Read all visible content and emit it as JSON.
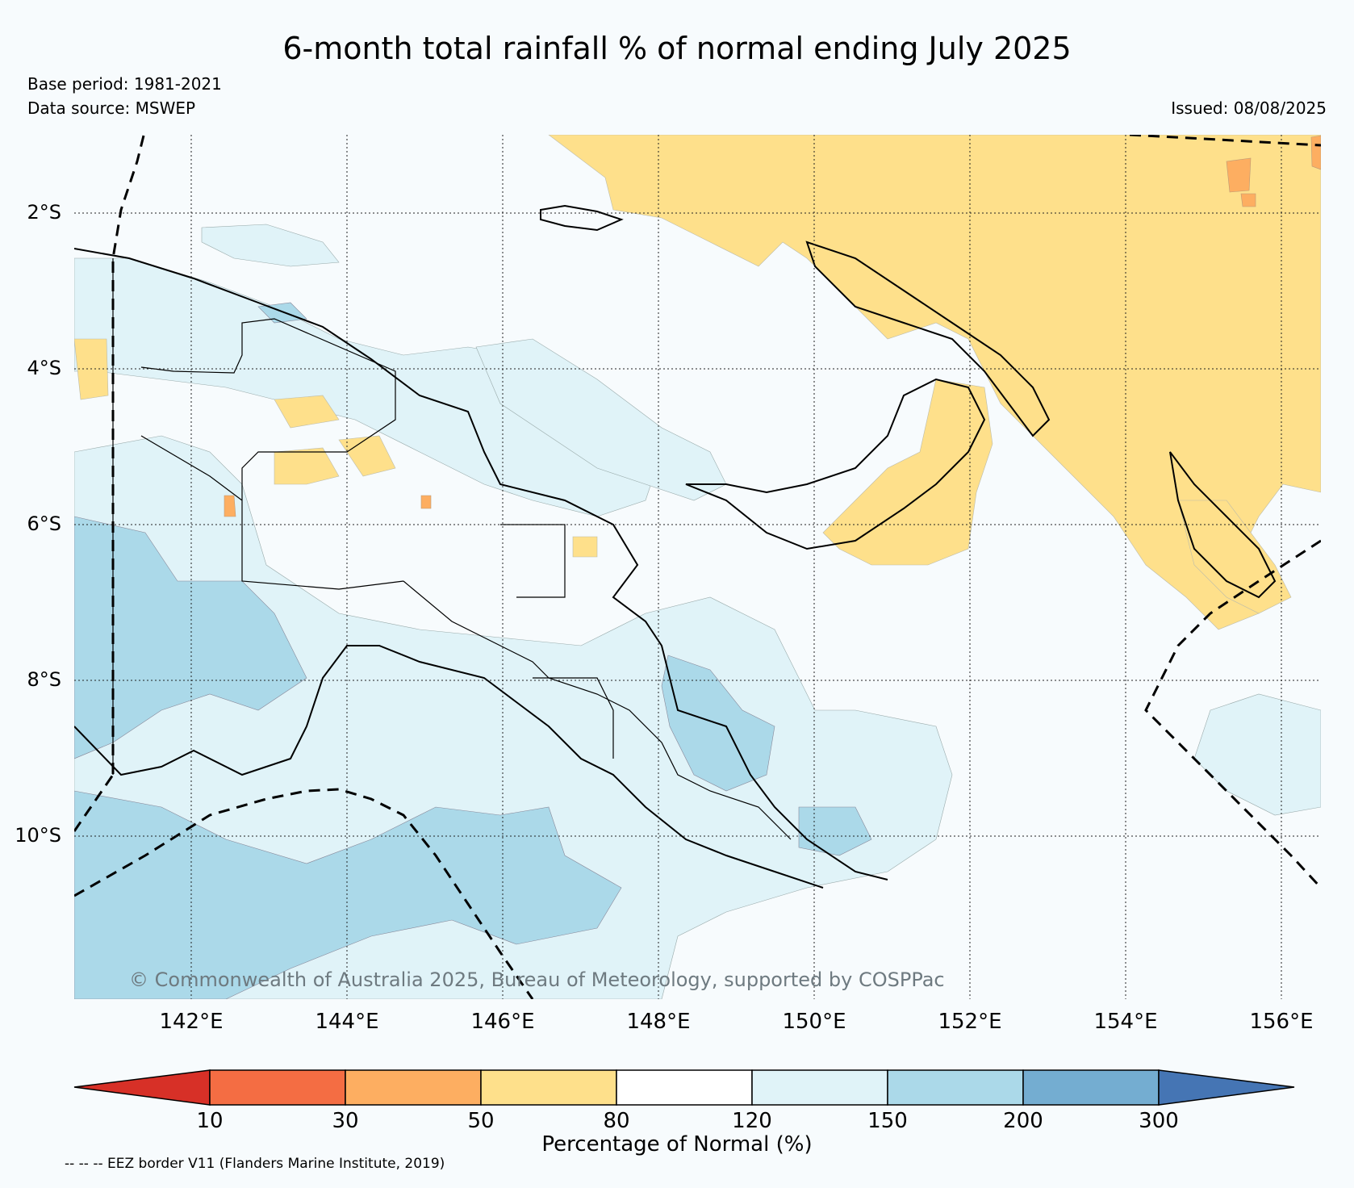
{
  "title": "6-month total rainfall % of normal ending July 2025",
  "base_period": "Base period: 1981-2021",
  "data_source": "Data source: MSWEP",
  "issued": "Issued: 08/08/2025",
  "copyright": "© Commonwealth of Australia 2025, Bureau of Meteorology, supported by COSPPac",
  "footer_note": "-- -- -- EEZ border V11 (Flanders Marine Institute, 2019)",
  "lat_labels": [
    "2°S",
    "4°S",
    "6°S",
    "8°S",
    "10°S"
  ],
  "lon_labels": [
    "142°E",
    "144°E",
    "146°E",
    "148°E",
    "150°E",
    "152°E",
    "154°E",
    "156°E"
  ],
  "colorbar": {
    "label": "Percentage of Normal (%)",
    "ticks": [
      "10",
      "30",
      "50",
      "80",
      "120",
      "150",
      "200",
      "300"
    ],
    "colors": {
      "lt10": "#d73027",
      "10-30": "#f46d43",
      "30-50": "#fdae61",
      "50-80": "#fee08b",
      "80-120": "#ffffff",
      "120-150": "#e0f3f8",
      "150-200": "#abd9e9",
      "200-300": "#74add1",
      "gt300": "#4575b4"
    }
  }
}
